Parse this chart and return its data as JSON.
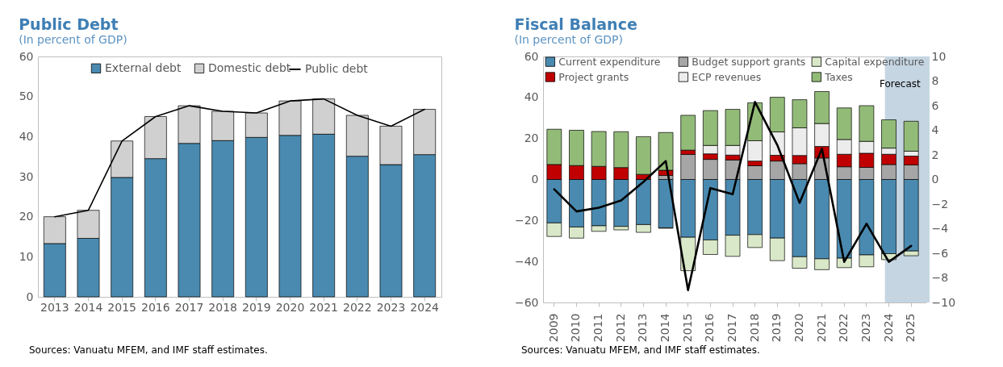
{
  "chart_data": [
    {
      "type": "bar",
      "title": "Public Debt",
      "subtitle": "(In percent of GDP)",
      "stacked": true,
      "legend": "top",
      "categories": [
        "2013",
        "2014",
        "2015",
        "2016",
        "2017",
        "2018",
        "2019",
        "2020",
        "2021",
        "2022",
        "2023",
        "2024"
      ],
      "ylim": [
        0,
        60
      ],
      "yticks": [
        0,
        10,
        20,
        30,
        40,
        50,
        60
      ],
      "annotations": [
        "Sources: Vanuatu MFEM, and IMF staff estimates."
      ],
      "series": [
        {
          "name": "External debt",
          "color": "#4a8ab0",
          "values": [
            13.3,
            14.6,
            29.8,
            34.5,
            38.3,
            39.0,
            39.8,
            40.3,
            40.6,
            35.1,
            33.0,
            35.5
          ]
        },
        {
          "name": "Domestic debt",
          "color": "#d0d0d0",
          "values": [
            6.7,
            7.0,
            9.1,
            10.5,
            9.4,
            7.3,
            6.1,
            8.6,
            8.8,
            10.2,
            9.6,
            11.3
          ]
        },
        {
          "name": "Public debt",
          "type": "line",
          "color": "#000000",
          "values": [
            20.0,
            21.6,
            38.9,
            45.0,
            47.7,
            46.3,
            45.9,
            48.9,
            49.4,
            45.3,
            42.6,
            46.8
          ]
        }
      ]
    },
    {
      "type": "bar",
      "title": "Fiscal Balance",
      "subtitle": "(In percent of GDP)",
      "stacked": true,
      "legend": "top left",
      "categories": [
        "2009",
        "2010",
        "2011",
        "2012",
        "2013",
        "2014",
        "2015",
        "2016",
        "2017",
        "2018",
        "2019",
        "2020",
        "2021",
        "2022",
        "2023",
        "2024",
        "2025"
      ],
      "ylim": [
        -60,
        60
      ],
      "yticks": [
        -60,
        -40,
        -20,
        0,
        20,
        40,
        60
      ],
      "y2lim": [
        -10,
        10
      ],
      "y2ticks": [
        -10,
        -8,
        -6,
        -4,
        -2,
        0,
        2,
        4,
        6,
        8,
        10
      ],
      "bands": [
        {
          "axis": "x",
          "from": "2024",
          "to": "2025",
          "label": "Forecast",
          "color": "#c5d5e2"
        }
      ],
      "annotations": [
        "Sources: Vanuatu MFEM, and IMF staff estimates."
      ],
      "series": [
        {
          "name": "Current expenditure",
          "color": "#4a8ab0",
          "values": [
            -21.2,
            -23.2,
            -22.6,
            -22.9,
            -22.0,
            -23.6,
            -28.2,
            -29.5,
            -27.2,
            -26.9,
            -28.6,
            -37.7,
            -38.7,
            -38.4,
            -36.8,
            -36.2,
            -34.9
          ]
        },
        {
          "name": "Budget support grants",
          "color": "#a6a6a6",
          "values": [
            0,
            0,
            0,
            0,
            0,
            2.0,
            12.2,
            9.8,
            9.5,
            6.7,
            9.0,
            7.7,
            10.5,
            6.2,
            5.9,
            7.3,
            7.1
          ]
        },
        {
          "name": "Capital expenditure",
          "color": "#d9e8c8",
          "values": [
            -6.6,
            -5.4,
            -2.7,
            -1.7,
            -3.8,
            -0.2,
            -16.3,
            -7.1,
            -10.3,
            -6.3,
            -11.0,
            -5.6,
            -5.3,
            -4.6,
            -5.8,
            -2.9,
            -2.3
          ]
        },
        {
          "name": "Project grants",
          "color": "#c00000",
          "values": [
            7.3,
            6.8,
            6.4,
            5.8,
            2.5,
            2.5,
            2.1,
            2.7,
            2.4,
            2.3,
            2.8,
            4.0,
            5.6,
            6.1,
            6.9,
            5.0,
            4.3
          ]
        },
        {
          "name": "ECP revenues",
          "color": "#ececec",
          "values": [
            0,
            0,
            0,
            0,
            0,
            0,
            0,
            4.1,
            4.7,
            9.9,
            11.4,
            13.5,
            11.2,
            7.2,
            5.8,
            3.0,
            2.4
          ]
        },
        {
          "name": "Taxes",
          "color": "#93bb78",
          "values": [
            17.2,
            17.2,
            17.0,
            17.5,
            18.4,
            18.4,
            17.0,
            17.0,
            17.6,
            18.5,
            16.9,
            13.7,
            15.6,
            15.4,
            17.4,
            13.8,
            14.6
          ]
        },
        {
          "type": "line",
          "axis": "y2",
          "color": "#000000",
          "values": [
            -0.8,
            -2.6,
            -2.3,
            -1.7,
            -0.2,
            1.5,
            -9.0,
            -0.7,
            -1.2,
            6.3,
            2.8,
            -1.9,
            2.5,
            -6.7,
            -3.6,
            -6.7,
            -5.4
          ]
        }
      ]
    }
  ]
}
